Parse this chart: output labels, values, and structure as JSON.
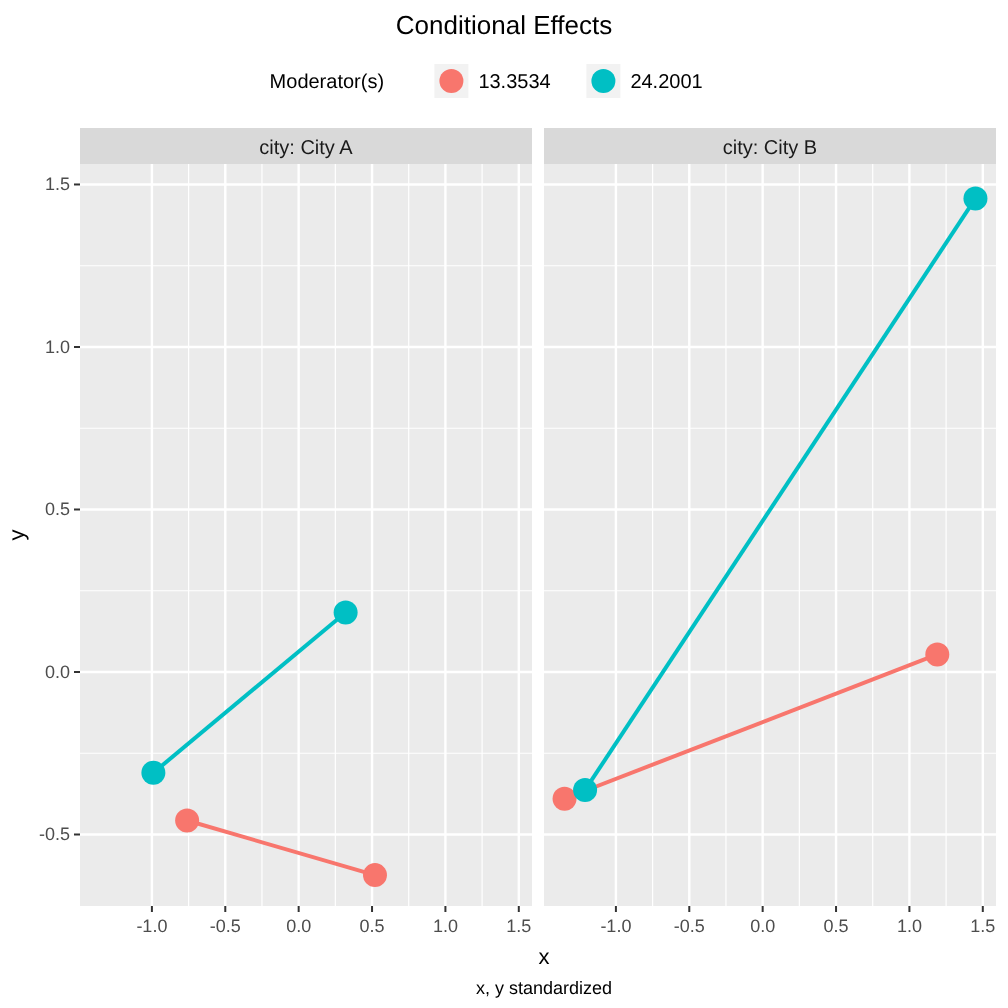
{
  "chart_data": [
    {
      "type": "line",
      "title": "Conditional Effects",
      "subtitle": "city: City A",
      "xlabel": "x",
      "ylabel": "y",
      "legend_title": "Moderator(s)",
      "legend": "top",
      "annotations": [
        "x, y standardized"
      ],
      "marker": "circle",
      "grid": true,
      "xlim": [
        -1.49,
        1.59
      ],
      "ylim": [
        -0.72,
        1.563
      ],
      "xticks": [
        {
          "value": -1,
          "label": "-1.0"
        },
        -0.5,
        {
          "value": 0,
          "label": "0.0"
        },
        0.5,
        {
          "value": 1,
          "label": "1.0"
        },
        1.5
      ],
      "yticks": [
        -0.5,
        {
          "value": 0,
          "label": "0.0"
        },
        0.5,
        {
          "value": 1,
          "label": "1.0"
        },
        1.5
      ],
      "series": [
        {
          "name": "13.3534",
          "color": "#f8766d",
          "x": [
            -0.76,
            0.52
          ],
          "values": [
            -0.457,
            -0.625
          ]
        },
        {
          "name": "24.2001",
          "color": "#00bfc4",
          "x": [
            -0.99,
            0.32
          ],
          "values": [
            -0.31,
            0.183
          ]
        }
      ]
    },
    {
      "type": "line",
      "subtitle": "city: City B",
      "marker": "circle",
      "grid": true,
      "tick_labels": "x",
      "xlim": [
        -1.49,
        1.59
      ],
      "ylim": [
        -0.72,
        1.563
      ],
      "xticks": [
        {
          "value": -1,
          "label": "-1.0"
        },
        -0.5,
        {
          "value": 0,
          "label": "0.0"
        },
        0.5,
        {
          "value": 1,
          "label": "1.0"
        },
        1.5
      ],
      "yticks": [
        -0.5,
        0,
        0.5,
        1,
        1.5
      ],
      "series": [
        {
          "name": "13.3534",
          "color": "#f8766d",
          "x": [
            -1.35,
            1.19
          ],
          "values": [
            -0.39,
            0.054
          ]
        },
        {
          "name": "24.2001",
          "color": "#00bfc4",
          "x": [
            -1.21,
            1.45
          ],
          "values": [
            -0.363,
            1.457
          ]
        }
      ]
    }
  ]
}
